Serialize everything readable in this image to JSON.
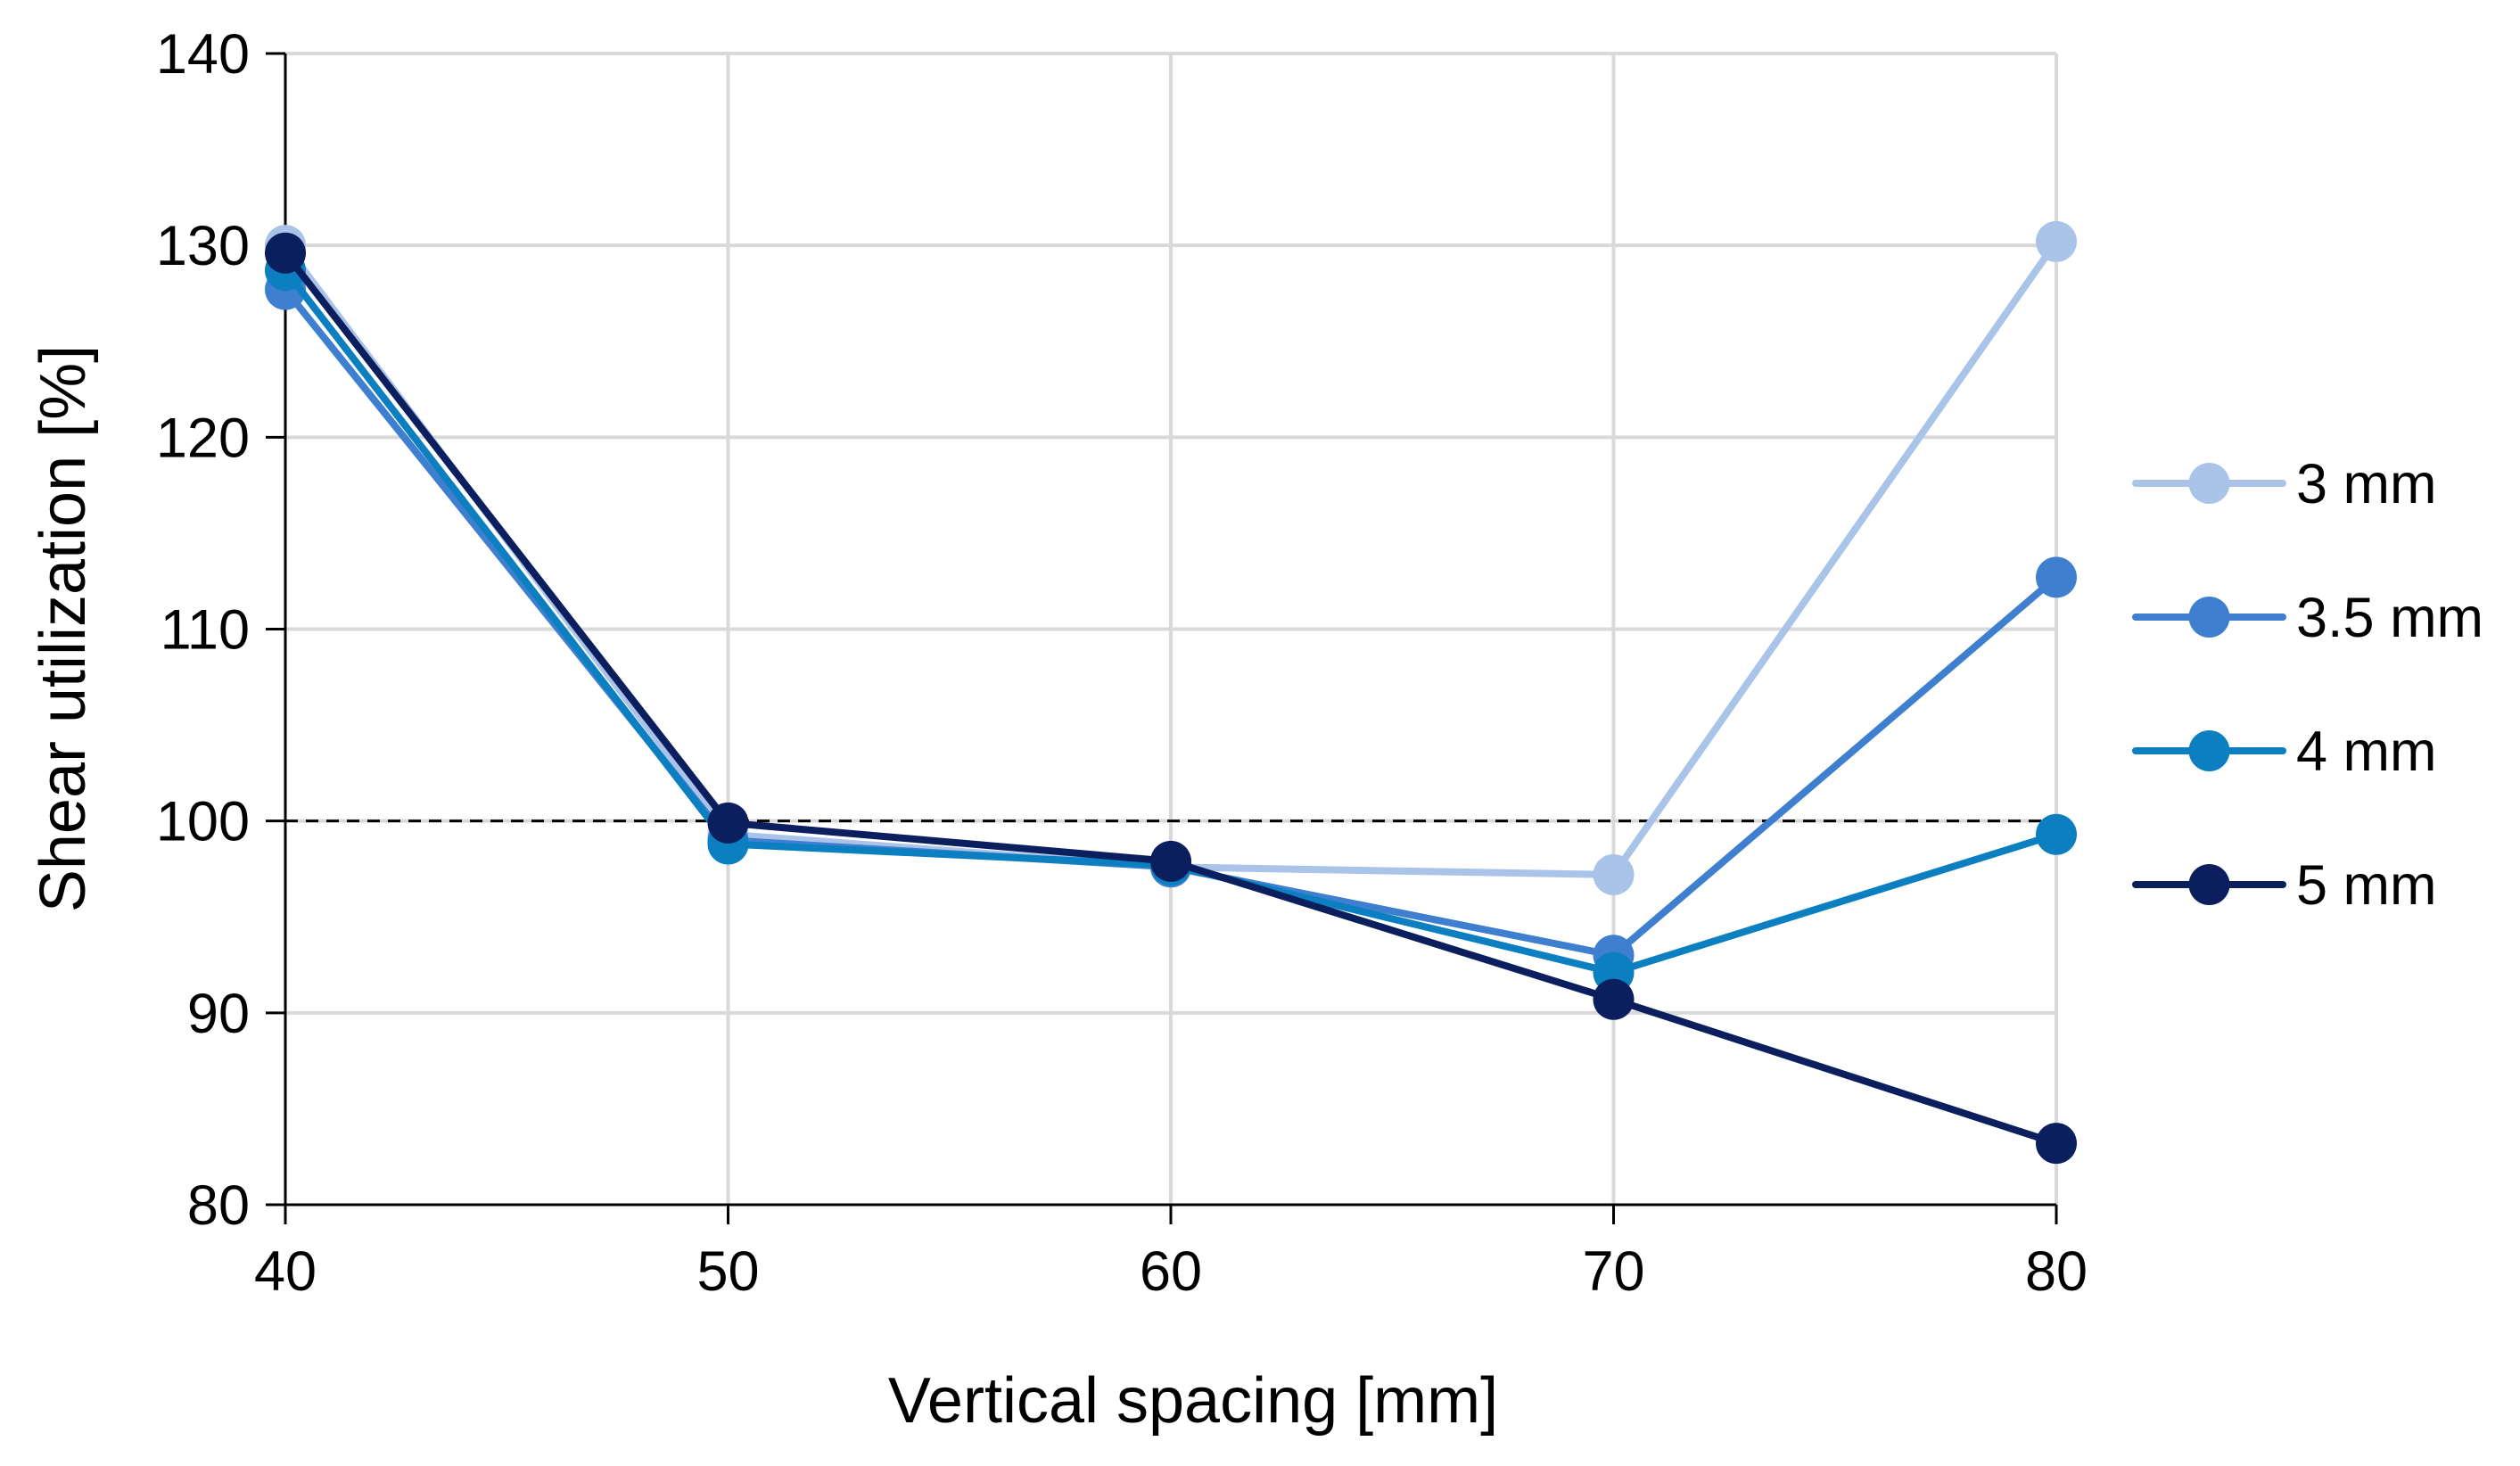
{
  "chart_data": {
    "type": "line",
    "title": "",
    "xlabel": "Vertical spacing [mm]",
    "ylabel": "Shear utilization [%]",
    "x": [
      40,
      50,
      60,
      70,
      80
    ],
    "x_ticks": [
      "40",
      "50",
      "60",
      "70",
      "80"
    ],
    "xlim": [
      40,
      80
    ],
    "y_ticks": [
      "80",
      "90",
      "100",
      "110",
      "120",
      "130",
      "140"
    ],
    "ylim": [
      80,
      140
    ],
    "grid": true,
    "reference_line": {
      "y": 100,
      "style": "dashed",
      "color": "#000000"
    },
    "legend_position": "right",
    "series": [
      {
        "name": "3 mm",
        "color": "#a9c4e8",
        "values": [
          130.0,
          99.3,
          97.6,
          97.2,
          130.2
        ]
      },
      {
        "name": "3.5 mm",
        "color": "#3f7fcf",
        "values": [
          127.7,
          99.0,
          97.6,
          93.0,
          112.7
        ]
      },
      {
        "name": "4 mm",
        "color": "#0b7fc0",
        "values": [
          128.7,
          98.8,
          97.7,
          92.1,
          99.3
        ]
      },
      {
        "name": "5 mm",
        "color": "#0b1f5e",
        "values": [
          129.6,
          99.9,
          97.9,
          90.7,
          83.2
        ]
      }
    ]
  }
}
